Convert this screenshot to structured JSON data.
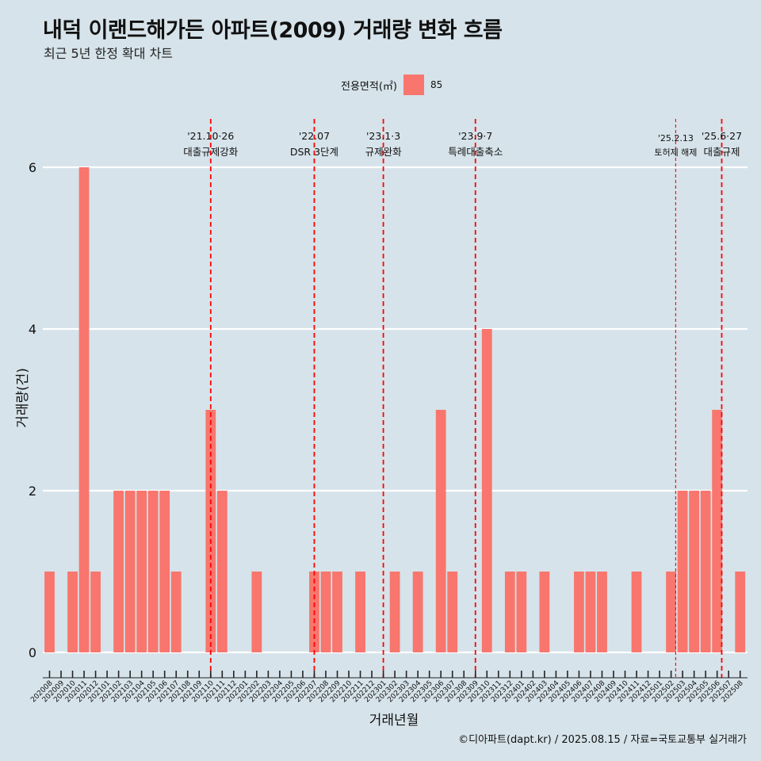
{
  "title": "내덕 이랜드해가든 아파트(2009) 거래량 변화 흐름",
  "subtitle": "최근 5년 한정 확대 차트",
  "legend": {
    "title": "전용면적(㎡)",
    "item": "85",
    "color": "#f8766d"
  },
  "caption": "©디아파트(dapt.kr) / 2025.08.15 / 자료=국토교통부 실거래가",
  "chart_data": {
    "type": "bar",
    "xlabel": "거래년월",
    "ylabel": "거래량(건)",
    "ylim": [
      -0.25,
      6.3
    ],
    "yticks": [
      0,
      2,
      4,
      6
    ],
    "bar_color": "#f8766d",
    "grid": true,
    "legend_position": "top",
    "categories": [
      "202008",
      "202009",
      "202010",
      "202011",
      "202012",
      "202101",
      "202102",
      "202103",
      "202104",
      "202105",
      "202106",
      "202107",
      "202108",
      "202109",
      "202110",
      "202111",
      "202112",
      "202201",
      "202202",
      "202203",
      "202204",
      "202205",
      "202206",
      "202207",
      "202208",
      "202209",
      "202210",
      "202211",
      "202212",
      "202301",
      "202302",
      "202303",
      "202304",
      "202305",
      "202306",
      "202307",
      "202308",
      "202309",
      "202310",
      "202311",
      "202312",
      "202401",
      "202402",
      "202403",
      "202404",
      "202405",
      "202406",
      "202407",
      "202408",
      "202409",
      "202410",
      "202411",
      "202412",
      "202501",
      "202502",
      "202503",
      "202504",
      "202505",
      "202506",
      "202507",
      "202508"
    ],
    "series": [
      {
        "name": "85",
        "values": [
          1,
          0,
          1,
          6,
          1,
          0,
          2,
          2,
          2,
          2,
          2,
          1,
          0,
          0,
          3,
          2,
          0,
          0,
          1,
          0,
          0,
          0,
          0,
          1,
          1,
          1,
          0,
          1,
          0,
          0,
          1,
          0,
          1,
          0,
          3,
          1,
          0,
          0,
          4,
          0,
          1,
          1,
          0,
          1,
          0,
          0,
          1,
          1,
          1,
          0,
          0,
          1,
          0,
          0,
          1,
          2,
          2,
          2,
          3,
          0,
          1
        ]
      }
    ],
    "events": [
      {
        "index": 14.0,
        "date": "'21.10·26",
        "label": "대출규제강화",
        "style": "bold"
      },
      {
        "index": 23.0,
        "date": "'22.07",
        "label": "DSR 3단계",
        "style": "bold"
      },
      {
        "index": 29.0,
        "date": "'23.1·3",
        "label": "규제완화",
        "style": "bold"
      },
      {
        "index": 37.0,
        "date": "'23.9·7",
        "label": "특례대출축소",
        "style": "bold"
      },
      {
        "index": 54.4,
        "date": "'25.2.13",
        "label": "토허제 해제",
        "style": "thin"
      },
      {
        "index": 58.4,
        "date": "'25.6·27",
        "label": "대출규제",
        "style": "bold"
      }
    ]
  }
}
